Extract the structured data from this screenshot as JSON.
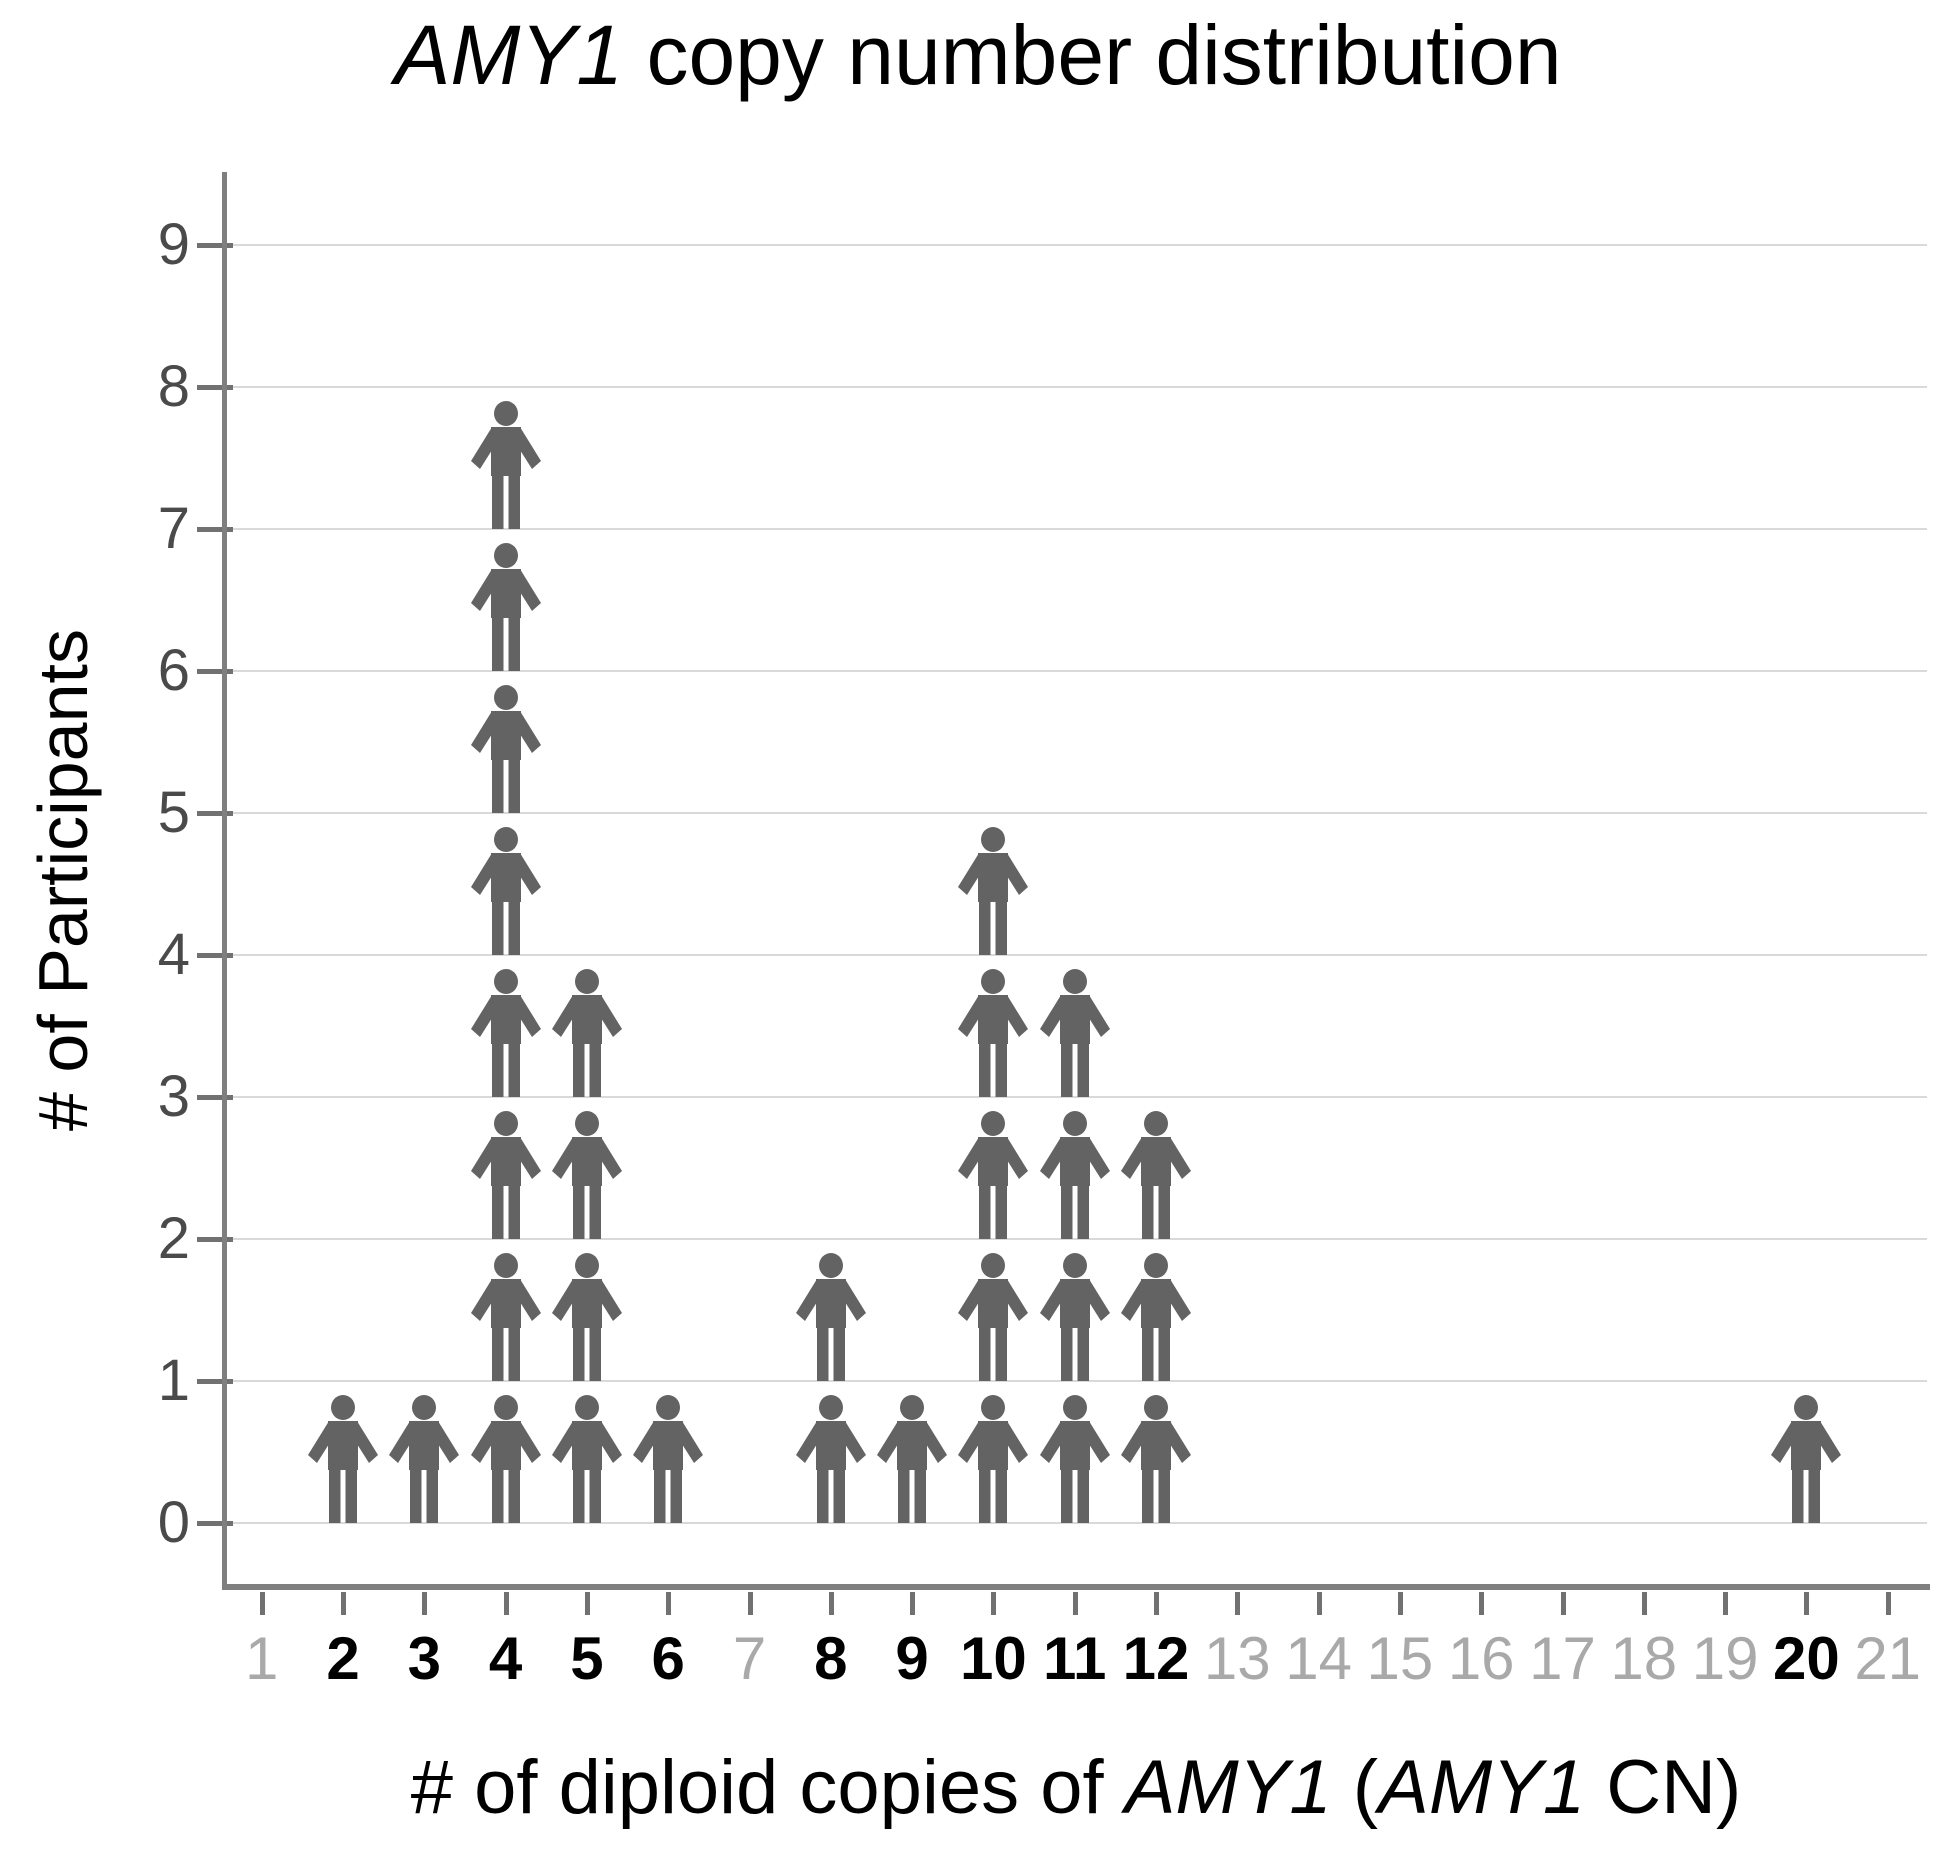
{
  "title": {
    "text": "AMY1 copy number distribution",
    "parts": [
      {
        "text": "AMY1",
        "italic": true
      },
      {
        "text": " copy number distribution",
        "italic": false
      }
    ]
  },
  "y_axis": {
    "title": "# of Participants",
    "tick_labels": [
      "0",
      "1",
      "2",
      "3",
      "4",
      "5",
      "6",
      "7",
      "8",
      "9"
    ]
  },
  "x_axis": {
    "title": "# of diploid copies of AMY1 (AMY1 CN)",
    "title_parts": [
      {
        "text": "# of diploid copies of ",
        "italic": false
      },
      {
        "text": "AMY1",
        "italic": true
      },
      {
        "text": " (",
        "italic": false
      },
      {
        "text": "AMY1",
        "italic": true
      },
      {
        "text": " CN)",
        "italic": false
      }
    ],
    "tick_labels": [
      "1",
      "2",
      "3",
      "4",
      "5",
      "6",
      "7",
      "8",
      "9",
      "10",
      "11",
      "12",
      "13",
      "14",
      "15",
      "16",
      "17",
      "18",
      "19",
      "20",
      "21"
    ]
  },
  "chart_data": {
    "type": "bar",
    "subtype": "pictogram-of-person-icons",
    "title": "AMY1 copy number distribution",
    "xlabel": "# of diploid copies of AMY1 (AMY1 CN)",
    "ylabel": "# of Participants",
    "categories": [
      1,
      2,
      3,
      4,
      5,
      6,
      7,
      8,
      9,
      10,
      11,
      12,
      13,
      14,
      15,
      16,
      17,
      18,
      19,
      20,
      21
    ],
    "values": [
      0,
      1,
      1,
      8,
      4,
      1,
      0,
      2,
      1,
      5,
      4,
      3,
      0,
      0,
      0,
      0,
      0,
      0,
      0,
      1,
      0
    ],
    "icon": "person-icon",
    "one_icon_equals": 1,
    "ylim": [
      0,
      9
    ],
    "yticks": [
      0,
      1,
      2,
      3,
      4,
      5,
      6,
      7,
      8,
      9
    ],
    "grid": "horizontal",
    "legend": "none",
    "x_labels_bold_where_value_present": true
  },
  "colors": {
    "figure": "#636363",
    "axis": "#7f7f7f",
    "tick": "#717171",
    "grid": "#d9d9d9",
    "y_label": "#4a4a4a",
    "x_label_active": "#000000",
    "x_label_inactive": "#a9a9a9",
    "background": "#ffffff",
    "title_text": "#000000"
  }
}
